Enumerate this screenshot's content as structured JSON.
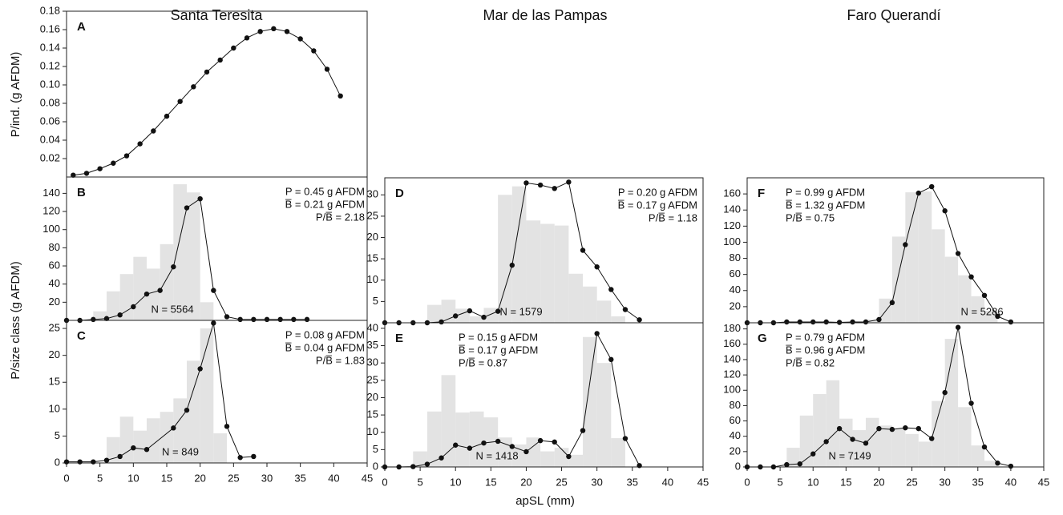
{
  "column_titles": [
    "Santa Teresita",
    "Mar de las Pampas",
    "Faro Querandí"
  ],
  "y_labels": [
    "P/ind. (g AFDM)",
    "P/size class (g AFDM)"
  ],
  "x_label": "apSL (mm)",
  "chart_data": [
    {
      "type": "line",
      "panel_label": "A",
      "xlim": [
        0,
        45
      ],
      "ylim": [
        0,
        0.18
      ],
      "yticks": [
        0.02,
        0.04,
        0.06,
        0.08,
        {
          "value": 0.1,
          "label": "0.10"
        },
        0.12,
        0.14,
        0.16,
        0.18
      ],
      "x": [
        1,
        3,
        5,
        7,
        9,
        11,
        13,
        15,
        17,
        19,
        21,
        23,
        25,
        27,
        29,
        31,
        33,
        35,
        37,
        39,
        41
      ],
      "values": [
        0.002,
        0.004,
        0.009,
        0.015,
        0.023,
        0.036,
        0.05,
        0.066,
        0.082,
        0.098,
        0.114,
        0.127,
        0.14,
        0.151,
        0.158,
        0.161,
        0.158,
        0.15,
        0.137,
        0.117,
        0.088
      ]
    },
    {
      "type": "line",
      "panel_label": "B",
      "xlim": [
        0,
        45
      ],
      "ylim": [
        0,
        158
      ],
      "yticks": [
        20,
        40,
        60,
        80,
        100,
        120,
        140
      ],
      "x": [
        0,
        2,
        4,
        6,
        8,
        10,
        12,
        14,
        16,
        18,
        20,
        22,
        24,
        26,
        28,
        30,
        32,
        34,
        36
      ],
      "values": [
        0,
        0,
        1,
        2,
        6,
        15,
        29,
        33,
        59,
        124,
        134,
        33,
        4,
        1,
        1,
        1,
        1,
        1,
        1
      ],
      "hist": {
        "bins": [
          4,
          6,
          8,
          10,
          12,
          14,
          16,
          18,
          20,
          22
        ],
        "counts": [
          10,
          32,
          51,
          70,
          57,
          84,
          150,
          141,
          20
        ]
      },
      "annotations": [
        "P = 0.45 g AFDM",
        "B̅ = 0.21 g AFDM",
        "P/B̅ = 2.18"
      ],
      "n_label": "N = 5564"
    },
    {
      "type": "line",
      "panel_label": "C",
      "xlim": [
        0,
        45
      ],
      "ylim": [
        0,
        26.5
      ],
      "yticks": [
        0,
        5,
        10,
        15,
        20,
        25
      ],
      "xticks": [
        0,
        5,
        10,
        15,
        20,
        25,
        30,
        35,
        40,
        45
      ],
      "x": [
        0,
        2,
        4,
        6,
        8,
        10,
        12,
        16,
        18,
        20,
        22,
        24,
        26,
        28
      ],
      "values": [
        0.2,
        0.2,
        0.2,
        0.5,
        1.2,
        2.8,
        2.5,
        6.5,
        9.8,
        17.5,
        26,
        6.8,
        1,
        1.2
      ],
      "hist": {
        "bins": [
          6,
          8,
          10,
          12,
          14,
          16,
          18,
          20,
          22,
          24
        ],
        "counts": [
          4.8,
          8.6,
          6,
          8.3,
          9.5,
          12,
          19,
          25,
          5.5
        ]
      },
      "annotations": [
        "P = 0.08 g AFDM",
        "B̅ = 0.04 g AFDM",
        "P/B̅ = 1.83"
      ],
      "n_label": "N = 849"
    },
    {
      "type": "line",
      "panel_label": "D",
      "xlim": [
        0,
        45
      ],
      "ylim": [
        0,
        34
      ],
      "yticks": [
        5,
        10,
        15,
        20,
        25,
        30
      ],
      "x": [
        0,
        2,
        4,
        6,
        8,
        10,
        12,
        14,
        16,
        18,
        20,
        22,
        24,
        26,
        28,
        30,
        32,
        34,
        36
      ],
      "values": [
        0,
        0,
        0,
        0,
        0.2,
        1.6,
        2.8,
        1.3,
        2.7,
        13.5,
        32.8,
        32.3,
        31.5,
        33,
        17,
        13.1,
        7.8,
        3.1,
        0.7
      ],
      "hist": {
        "bins": [
          6,
          8,
          10,
          12,
          14,
          16,
          18,
          20,
          22,
          24,
          26,
          28,
          30,
          32,
          34
        ],
        "counts": [
          4.2,
          5.4,
          3.3,
          1.5,
          3.5,
          30,
          32,
          24,
          23.2,
          22.8,
          11.5,
          8.5,
          5.2,
          1.5
        ]
      },
      "annotations": [
        "P = 0.20 g AFDM",
        "B̅ = 0.17 g AFDM",
        "P/B̅ = 1.18"
      ],
      "n_label": "N = 1579"
    },
    {
      "type": "line",
      "panel_label": "E",
      "xlim": [
        0,
        45
      ],
      "ylim": [
        0,
        41.6
      ],
      "yticks": [
        0,
        5,
        10,
        15,
        20,
        25,
        30,
        35,
        40
      ],
      "xticks": [
        0,
        5,
        10,
        15,
        20,
        25,
        30,
        35,
        40,
        45
      ],
      "x": [
        0,
        2,
        4,
        6,
        8,
        10,
        12,
        14,
        16,
        18,
        20,
        22,
        24,
        26,
        28,
        30,
        32,
        34,
        36
      ],
      "values": [
        0,
        0,
        0.1,
        0.8,
        2.6,
        6.3,
        5.4,
        6.9,
        7.4,
        5.9,
        4.4,
        7.6,
        7.2,
        3,
        10.5,
        38.5,
        31,
        8.2,
        0.4
      ],
      "hist": {
        "bins": [
          4,
          6,
          8,
          10,
          12,
          14,
          16,
          18,
          20,
          22,
          24,
          26,
          28,
          30,
          32,
          34
        ],
        "counts": [
          4.5,
          16,
          26.5,
          15.7,
          16,
          14.3,
          8.5,
          6.5,
          8.5,
          4.5,
          5.5,
          3.5,
          37.5,
          30,
          8.3
        ]
      },
      "annotations": [
        "P = 0.15 g AFDM",
        "B̅ = 0.17 g AFDM",
        "P/B̅ = 0.87"
      ],
      "n_label": "N = 1418"
    },
    {
      "type": "line",
      "panel_label": "F",
      "xlim": [
        0,
        45
      ],
      "ylim": [
        0,
        180
      ],
      "yticks": [
        20,
        40,
        60,
        80,
        100,
        120,
        140,
        160
      ],
      "x": [
        0,
        2,
        4,
        6,
        8,
        10,
        12,
        14,
        16,
        18,
        20,
        22,
        24,
        26,
        28,
        30,
        32,
        34,
        36,
        38,
        40
      ],
      "values": [
        0,
        0,
        0,
        1,
        1,
        1,
        1,
        0.5,
        1,
        1,
        4,
        25,
        97,
        161,
        169,
        139,
        86,
        57,
        34,
        8,
        1
      ],
      "hist": {
        "bins": [
          18,
          20,
          22,
          24,
          26,
          28,
          30,
          32,
          34,
          36,
          38
        ],
        "counts": [
          4,
          30,
          107,
          162,
          163,
          116,
          82,
          59,
          33,
          15
        ]
      },
      "annotations": [
        "P = 0.99 g AFDM",
        "B̅ = 1.32 g AFDM",
        "P/B̅ = 0.75"
      ],
      "n_label": "N = 5286"
    },
    {
      "type": "line",
      "panel_label": "G",
      "xlim": [
        0,
        45
      ],
      "ylim": [
        0,
        188
      ],
      "yticks": [
        0,
        20,
        40,
        60,
        80,
        100,
        120,
        140,
        160,
        180
      ],
      "xticks": [
        0,
        5,
        10,
        15,
        20,
        25,
        30,
        35,
        40,
        45
      ],
      "x": [
        0,
        2,
        4,
        6,
        8,
        10,
        12,
        14,
        16,
        18,
        20,
        22,
        24,
        26,
        28,
        30,
        32,
        34,
        36,
        38,
        40
      ],
      "values": [
        0,
        0,
        0,
        3,
        4,
        17,
        33,
        50,
        36,
        31,
        50,
        49,
        51,
        50,
        37,
        97,
        182,
        83,
        26,
        5,
        1
      ],
      "hist": {
        "bins": [
          6,
          8,
          10,
          12,
          14,
          16,
          18,
          20,
          22,
          24,
          26,
          28,
          30,
          32,
          34,
          36,
          38
        ],
        "counts": [
          25,
          67,
          95,
          113,
          63,
          48,
          64,
          54,
          50,
          43,
          33,
          86,
          167,
          78,
          28,
          8
        ]
      },
      "annotations": [
        "P = 0.79 g AFDM",
        "B̅ = 0.96 g AFDM",
        "P/B̅ = 0.82"
      ],
      "n_label": "N = 7149"
    }
  ]
}
